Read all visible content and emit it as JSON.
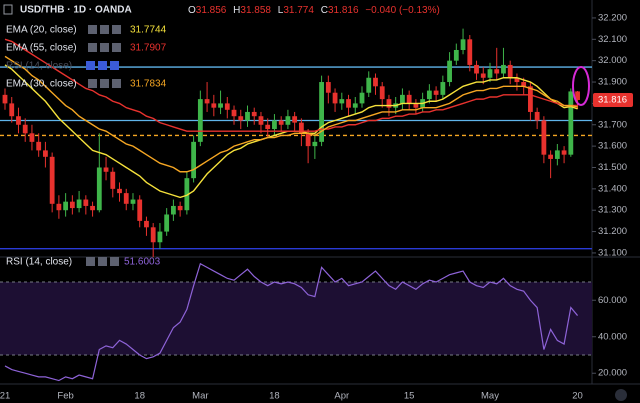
{
  "chart_data": [
    {
      "type": "candlestick",
      "title": "USD/THB · 1D · OANDA",
      "quote": [
        {
          "key": "O",
          "value": "31.856"
        },
        {
          "key": "H",
          "value": "31.858"
        },
        {
          "key": "L",
          "value": "31.774"
        },
        {
          "key": "C",
          "value": "31.816"
        }
      ],
      "change": "−0.040 (−0.13%)",
      "hidden_study": "RSI (14, close)",
      "up_color": "#3fb54a",
      "down_color": "#e8322e",
      "categories": [
        "21",
        null,
        null,
        null,
        null,
        null,
        null,
        null,
        null,
        "Feb",
        null,
        null,
        null,
        null,
        null,
        null,
        null,
        null,
        null,
        null,
        "18",
        null,
        null,
        null,
        null,
        null,
        null,
        null,
        null,
        "Mar",
        null,
        null,
        null,
        null,
        null,
        null,
        null,
        null,
        null,
        null,
        "18",
        null,
        null,
        null,
        null,
        null,
        null,
        null,
        null,
        null,
        "Apr",
        null,
        null,
        null,
        null,
        null,
        null,
        null,
        null,
        null,
        "15",
        null,
        null,
        null,
        null,
        null,
        null,
        null,
        null,
        null,
        null,
        null,
        "May",
        null,
        null,
        null,
        null,
        null,
        null,
        null,
        null,
        null,
        null,
        null,
        null,
        "20"
      ],
      "open": [
        31.84,
        31.8,
        31.74,
        31.7,
        31.66,
        31.62,
        31.58,
        31.55,
        31.33,
        31.3,
        31.34,
        31.31,
        31.35,
        31.32,
        31.3,
        31.5,
        31.48,
        31.4,
        31.38,
        31.33,
        31.35,
        31.25,
        31.22,
        31.15,
        31.2,
        31.28,
        31.32,
        31.3,
        31.45,
        31.62,
        31.82,
        31.8,
        31.78,
        31.8,
        31.77,
        31.74,
        31.72,
        31.76,
        31.74,
        31.7,
        31.68,
        31.72,
        31.7,
        31.74,
        31.71,
        31.66,
        31.6,
        31.62,
        31.9,
        31.85,
        31.8,
        31.82,
        31.78,
        31.8,
        31.85,
        31.92,
        31.88,
        31.82,
        31.78,
        31.8,
        31.84,
        31.8,
        31.78,
        31.82,
        31.86,
        31.84,
        31.9,
        32.0,
        32.05,
        32.1,
        31.98,
        31.94,
        31.92,
        31.96,
        31.94,
        31.98,
        31.92,
        31.9,
        31.88,
        31.76,
        31.72,
        31.56,
        31.54,
        31.58,
        31.56,
        31.856
      ],
      "high": [
        31.87,
        31.83,
        31.78,
        31.73,
        31.7,
        31.66,
        31.62,
        31.57,
        31.37,
        31.38,
        31.37,
        31.39,
        31.37,
        31.34,
        31.66,
        31.55,
        31.5,
        31.43,
        31.4,
        31.38,
        31.37,
        31.27,
        31.24,
        31.24,
        31.31,
        31.35,
        31.34,
        31.48,
        31.65,
        31.86,
        31.9,
        31.84,
        31.86,
        31.83,
        31.79,
        31.77,
        31.79,
        31.78,
        31.76,
        31.73,
        31.75,
        31.74,
        31.77,
        31.76,
        31.73,
        31.68,
        31.66,
        31.93,
        31.93,
        31.87,
        31.85,
        31.84,
        31.83,
        31.88,
        31.95,
        31.94,
        31.9,
        31.84,
        31.83,
        31.87,
        31.86,
        31.82,
        31.85,
        31.89,
        31.88,
        31.93,
        32.04,
        32.08,
        32.15,
        32.12,
        32.0,
        31.97,
        31.99,
        32.06,
        32.06,
        32.0,
        31.94,
        31.92,
        31.9,
        31.78,
        31.74,
        31.58,
        31.61,
        31.6,
        31.87,
        31.858
      ],
      "low": [
        31.77,
        31.71,
        31.66,
        31.62,
        31.58,
        31.55,
        31.5,
        31.29,
        31.26,
        31.27,
        31.28,
        31.29,
        31.28,
        31.27,
        31.29,
        31.44,
        31.36,
        31.34,
        31.3,
        31.3,
        31.22,
        31.18,
        31.08,
        31.12,
        31.18,
        31.25,
        31.27,
        31.28,
        31.43,
        31.6,
        31.76,
        31.74,
        31.75,
        31.73,
        31.7,
        31.68,
        31.69,
        31.7,
        31.66,
        31.64,
        31.65,
        31.67,
        31.68,
        31.67,
        31.6,
        31.52,
        31.54,
        31.6,
        31.8,
        31.76,
        31.77,
        31.74,
        31.75,
        31.78,
        31.83,
        31.84,
        31.78,
        31.74,
        31.75,
        31.77,
        31.77,
        31.75,
        31.76,
        31.8,
        31.81,
        31.82,
        31.88,
        31.98,
        32.03,
        31.95,
        31.91,
        31.89,
        31.9,
        31.91,
        31.92,
        31.89,
        31.86,
        31.84,
        31.72,
        31.68,
        31.52,
        31.45,
        31.51,
        31.52,
        31.55,
        31.774
      ],
      "close": [
        31.8,
        31.74,
        31.7,
        31.66,
        31.62,
        31.58,
        31.55,
        31.33,
        31.3,
        31.34,
        31.31,
        31.35,
        31.32,
        31.3,
        31.5,
        31.48,
        31.4,
        31.38,
        31.33,
        31.35,
        31.25,
        31.22,
        31.15,
        31.2,
        31.28,
        31.32,
        31.3,
        31.45,
        31.62,
        31.82,
        31.8,
        31.78,
        31.8,
        31.77,
        31.74,
        31.72,
        31.76,
        31.74,
        31.7,
        31.68,
        31.72,
        31.7,
        31.74,
        31.71,
        31.66,
        31.6,
        31.62,
        31.9,
        31.85,
        31.8,
        31.82,
        31.78,
        31.8,
        31.85,
        31.92,
        31.88,
        31.82,
        31.78,
        31.8,
        31.84,
        31.8,
        31.78,
        31.82,
        31.86,
        31.84,
        31.9,
        32.0,
        32.05,
        32.1,
        31.98,
        31.94,
        31.92,
        31.96,
        31.94,
        31.98,
        31.92,
        31.9,
        31.88,
        31.76,
        31.72,
        31.56,
        31.54,
        31.58,
        31.56,
        31.856,
        31.816
      ],
      "series": [
        {
          "name": "EMA (20, close)",
          "color": "#f5e13b",
          "values": [
            31.98,
            31.96,
            31.93,
            31.9,
            31.87,
            31.84,
            31.81,
            31.77,
            31.73,
            31.7,
            31.67,
            31.64,
            31.61,
            31.58,
            31.57,
            31.56,
            31.54,
            31.52,
            31.5,
            31.48,
            31.46,
            31.43,
            31.41,
            31.39,
            31.38,
            31.37,
            31.36,
            31.37,
            31.39,
            31.43,
            31.47,
            31.5,
            31.53,
            31.56,
            31.58,
            31.59,
            31.61,
            31.62,
            31.63,
            31.64,
            31.65,
            31.66,
            31.67,
            31.67,
            31.67,
            31.66,
            31.66,
            31.69,
            31.71,
            31.72,
            31.73,
            31.74,
            31.75,
            31.76,
            31.78,
            31.79,
            31.79,
            31.79,
            31.79,
            31.8,
            31.8,
            31.8,
            31.8,
            31.81,
            31.81,
            31.82,
            31.84,
            31.86,
            31.88,
            31.89,
            31.9,
            31.9,
            31.91,
            31.91,
            31.92,
            31.92,
            31.92,
            31.91,
            31.9,
            31.88,
            31.85,
            31.82,
            31.8,
            31.78,
            31.785,
            31.7744
          ]
        },
        {
          "name": "EMA (55, close)",
          "color": "#e8322e",
          "values": [
            32.1,
            32.09,
            32.07,
            32.05,
            32.03,
            32.01,
            31.99,
            31.97,
            31.95,
            31.93,
            31.91,
            31.89,
            31.87,
            31.86,
            31.84,
            31.83,
            31.81,
            31.8,
            31.78,
            31.77,
            31.76,
            31.74,
            31.73,
            31.71,
            31.7,
            31.69,
            31.68,
            31.67,
            31.67,
            31.67,
            31.67,
            31.67,
            31.67,
            31.67,
            31.67,
            31.67,
            31.67,
            31.67,
            31.67,
            31.67,
            31.67,
            31.67,
            31.67,
            31.67,
            31.67,
            31.67,
            31.67,
            31.68,
            31.68,
            31.69,
            31.69,
            31.7,
            31.7,
            31.71,
            31.72,
            31.72,
            31.73,
            31.73,
            31.74,
            31.74,
            31.75,
            31.75,
            31.76,
            31.76,
            31.77,
            31.77,
            31.78,
            31.79,
            31.8,
            31.81,
            31.82,
            31.82,
            31.83,
            31.83,
            31.84,
            31.84,
            31.84,
            31.84,
            31.84,
            31.83,
            31.82,
            31.81,
            31.8,
            31.79,
            31.79,
            31.7907
          ]
        },
        {
          "name": "EMA (30, close)",
          "color": "#f5a623",
          "values": [
            32.02,
            32.0,
            31.98,
            31.96,
            31.93,
            31.91,
            31.88,
            31.85,
            31.82,
            31.79,
            31.77,
            31.74,
            31.72,
            31.7,
            31.68,
            31.67,
            31.65,
            31.63,
            31.61,
            31.6,
            31.58,
            31.56,
            31.54,
            31.52,
            31.51,
            31.5,
            31.48,
            31.48,
            31.49,
            31.51,
            31.53,
            31.55,
            31.57,
            31.58,
            31.6,
            31.61,
            31.62,
            31.63,
            31.63,
            31.64,
            31.64,
            31.65,
            31.65,
            31.66,
            31.66,
            31.66,
            31.65,
            31.67,
            31.69,
            31.7,
            31.71,
            31.72,
            31.72,
            31.73,
            31.74,
            31.75,
            31.76,
            31.76,
            31.76,
            31.77,
            31.77,
            31.77,
            31.78,
            31.78,
            31.78,
            31.79,
            31.8,
            31.82,
            31.84,
            31.85,
            31.86,
            31.86,
            31.87,
            31.87,
            31.88,
            31.88,
            31.88,
            31.88,
            31.87,
            31.86,
            31.84,
            31.82,
            31.81,
            31.79,
            31.79,
            31.7834
          ]
        }
      ],
      "hlines": [
        {
          "value": 31.97,
          "color": "#5fb4ea",
          "style": "solid"
        },
        {
          "value": 31.72,
          "color": "#5fb4ea",
          "style": "solid"
        },
        {
          "value": 31.65,
          "color": "#f5a623",
          "style": "dashed"
        },
        {
          "value": 31.12,
          "color": "#2a3bd8",
          "style": "solid"
        }
      ],
      "last_price": {
        "value": 31.816,
        "label": "31.816"
      },
      "ylim": [
        31.081,
        32.284
      ],
      "yticks": [
        {
          "value": 31.1,
          "label": "31.100"
        },
        {
          "value": 31.2,
          "label": "31.200"
        },
        {
          "value": 31.3,
          "label": "31.300"
        },
        {
          "value": 31.4,
          "label": "31.400"
        },
        {
          "value": 31.5,
          "label": "31.500"
        },
        {
          "value": 31.6,
          "label": "31.600"
        },
        {
          "value": 31.7,
          "label": "31.700"
        },
        {
          "value": 31.8,
          "label": "31.800"
        },
        {
          "value": 31.9,
          "label": "31.900"
        },
        {
          "value": 32.0,
          "label": "32.000"
        },
        {
          "value": 32.1,
          "label": "32.100"
        },
        {
          "value": 32.2,
          "label": "32.200"
        }
      ]
    },
    {
      "type": "line",
      "series": [
        {
          "name": "RSI (14, close)",
          "color": "#8e63d8",
          "values": [
            24,
            22,
            21,
            20,
            19,
            18,
            18,
            17,
            16,
            18,
            17,
            19,
            18,
            17,
            33,
            35,
            34,
            38,
            36,
            33,
            30,
            28,
            29,
            31,
            38,
            45,
            48,
            55,
            68,
            80,
            78,
            76,
            74,
            72,
            71,
            74,
            77,
            73,
            70,
            68,
            70,
            69,
            70,
            69,
            67,
            63,
            62,
            78,
            74,
            70,
            72,
            68,
            69,
            70,
            73,
            76,
            72,
            68,
            66,
            70,
            68,
            66,
            69,
            71,
            70,
            72,
            74,
            75,
            76,
            70,
            68,
            67,
            70,
            69,
            72,
            68,
            66,
            65,
            60,
            56,
            33,
            44,
            38,
            36,
            56,
            51.6003
          ]
        }
      ],
      "levels": [
        70,
        30
      ],
      "ylim": [
        14.1,
        83.7
      ],
      "yticks": [
        {
          "value": 20,
          "label": "20.000"
        },
        {
          "value": 40,
          "label": "40.000"
        },
        {
          "value": 60,
          "label": "60.000"
        }
      ]
    }
  ]
}
